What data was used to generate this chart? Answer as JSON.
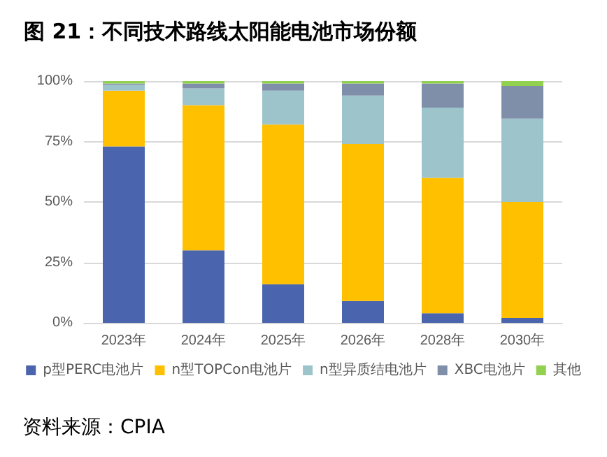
{
  "chart_data": {
    "type": "bar",
    "stacked": true,
    "title": "图 21：不同技术路线太阳能电池市场份额",
    "categories": [
      "2023年",
      "2024年",
      "2025年",
      "2026年",
      "2028年",
      "2030年"
    ],
    "series": [
      {
        "name": "p型PERC电池片",
        "color": "#4a65ad",
        "values": [
          73,
          30,
          16,
          9,
          4,
          2
        ]
      },
      {
        "name": "n型TOPCon电池片",
        "color": "#ffc000",
        "values": [
          23,
          60,
          66,
          65,
          56,
          48
        ]
      },
      {
        "name": "n型异质结电池片",
        "color": "#9dc3cb",
        "values": [
          2.5,
          7,
          14,
          20,
          29,
          34.5
        ]
      },
      {
        "name": "XBC电池片",
        "color": "#7f8fa9",
        "values": [
          0.5,
          2,
          3,
          5,
          10,
          13.5
        ]
      },
      {
        "name": "其他",
        "color": "#92d050",
        "values": [
          1,
          1,
          1,
          1,
          1,
          2
        ]
      }
    ],
    "ylim": [
      0,
      100
    ],
    "yticks": [
      {
        "value": 0,
        "label": "0%"
      },
      {
        "value": 25,
        "label": "25%"
      },
      {
        "value": 50,
        "label": "50%"
      },
      {
        "value": 75,
        "label": "75%"
      },
      {
        "value": 100,
        "label": "100%"
      }
    ],
    "grid": "y",
    "legend": "bottom",
    "annotations": [
      "资料来源：CPIA"
    ]
  }
}
